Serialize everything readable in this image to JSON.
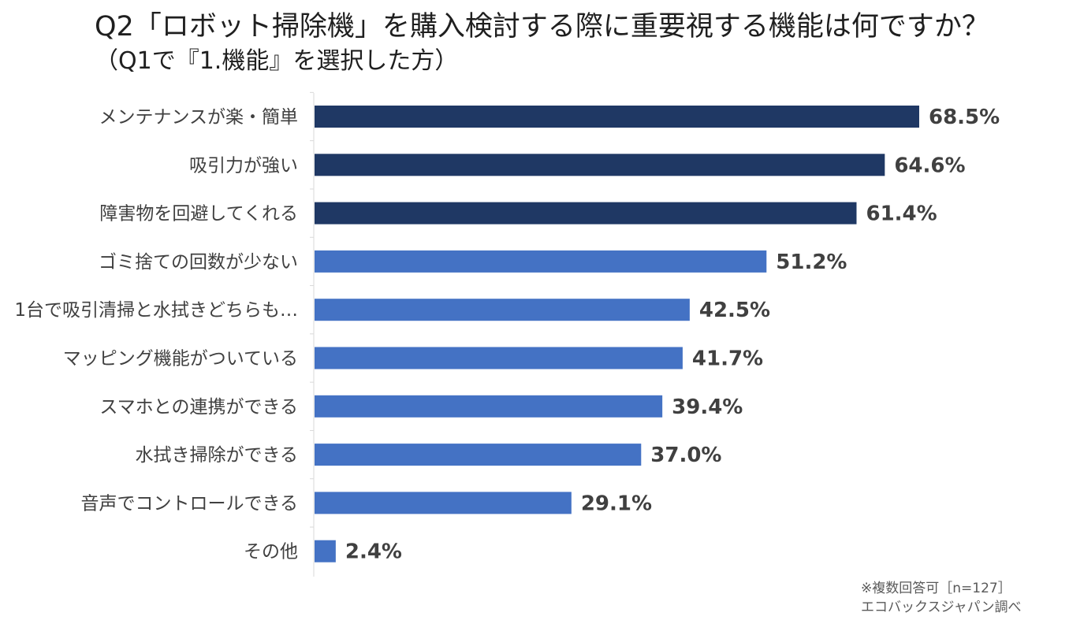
{
  "title": "Q2「ロボット掃除機」を購入検討する際に重要視する機能は何ですか？",
  "subtitle": "（Q1で『1.機能』を選択した方）",
  "footnote": {
    "sample": "※複数回答可［n=127］",
    "source": "エコバックスジャパン調べ"
  },
  "colors": {
    "top_bars": "#1f3864",
    "other_bars": "#4472c4",
    "axis": "#d9d9d9"
  },
  "chart_data": {
    "type": "bar",
    "orientation": "horizontal",
    "categories": [
      "メンテナンスが楽・簡単",
      "吸引力が強い",
      "障害物を回避してくれる",
      "ゴミ捨ての回数が少ない",
      "1台で吸引清掃と水拭きどちらも…",
      "マッピング機能がついている",
      "スマホとの連携ができる",
      "水拭き掃除ができる",
      "音声でコントロールできる",
      "その他"
    ],
    "values": [
      68.5,
      64.6,
      61.4,
      51.2,
      42.5,
      41.7,
      39.4,
      37.0,
      29.1,
      2.4
    ],
    "value_labels": [
      "68.5%",
      "64.6%",
      "61.4%",
      "51.2%",
      "42.5%",
      "41.7%",
      "39.4%",
      "37.0%",
      "29.1%",
      "2.4%"
    ],
    "highlight_top": 3,
    "unit": "%",
    "xlim": [
      0,
      100
    ],
    "grid": false
  }
}
